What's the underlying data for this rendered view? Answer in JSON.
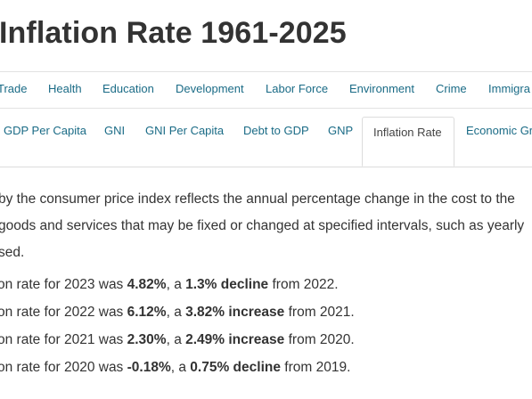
{
  "page": {
    "title": "Inflation Rate 1961-2025"
  },
  "nav_primary": [
    {
      "label": "Trade"
    },
    {
      "label": "Health"
    },
    {
      "label": "Education"
    },
    {
      "label": "Development"
    },
    {
      "label": "Labor Force"
    },
    {
      "label": "Environment"
    },
    {
      "label": "Crime"
    },
    {
      "label": "Immigra"
    }
  ],
  "nav_secondary": [
    {
      "label": "GDP Per Capita"
    },
    {
      "label": "GNI"
    },
    {
      "label": "GNI Per Capita"
    },
    {
      "label": "Debt to GDP"
    },
    {
      "label": "GNP"
    },
    {
      "label": "Inflation Rate",
      "active": true
    },
    {
      "label": "Economic Gr"
    }
  ],
  "description": {
    "line1": "by the consumer price index reflects the annual percentage change in the cost to the",
    "line2": "goods and services that may be fixed or changed at specified intervals, such as yearly",
    "line3": "sed."
  },
  "stats": [
    {
      "prefix": "on rate for 2023 was ",
      "rate": "4.82%",
      "mid": ", a ",
      "change": "1.3% decline",
      "suffix": " from 2022."
    },
    {
      "prefix": "on rate for 2022 was ",
      "rate": "6.12%",
      "mid": ", a ",
      "change": "3.82% increase",
      "suffix": " from 2021."
    },
    {
      "prefix": "on rate for 2021 was ",
      "rate": "2.30%",
      "mid": ", a ",
      "change": "2.49% increase",
      "suffix": " from 2020."
    },
    {
      "prefix": "on rate for 2020 was ",
      "rate": "-0.18%",
      "mid": ", a ",
      "change": "0.75% decline",
      "suffix": " from 2019."
    }
  ],
  "colors": {
    "link": "#1a6b86",
    "text": "#333333",
    "border": "#dcdcdc"
  }
}
